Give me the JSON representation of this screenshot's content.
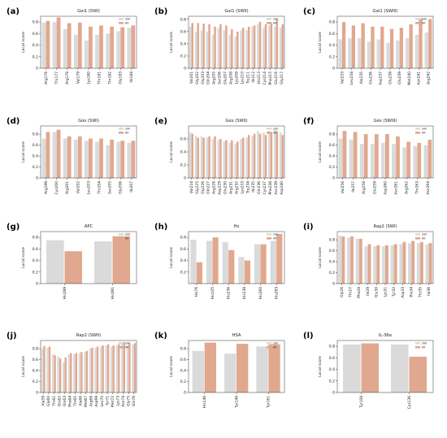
{
  "colors": {
    "s1": "#dadada",
    "s2": "#e0a88f",
    "axis": "#333333",
    "text": "#222222"
  },
  "chart_data": [
    {
      "label": "(a)",
      "type": "bar",
      "title": "Gαi1 (SWI)",
      "ylabel": "Local score",
      "ylim": [
        0,
        0.9
      ],
      "yticks": [
        0,
        0.2,
        0.4,
        0.6,
        0.8
      ],
      "legend": [
        "sim",
        "AF"
      ],
      "legend_position": "top-right",
      "categories": [
        "Arg176",
        "Thr177",
        "Arg178",
        "Val179",
        "Lys180",
        "Thr181",
        "Thr182",
        "Gly183",
        "Ile184"
      ],
      "series": [
        {
          "name": "sim",
          "values": [
            0.79,
            0.8,
            0.68,
            0.58,
            0.48,
            0.58,
            0.6,
            0.64,
            0.7
          ]
        },
        {
          "name": "AF",
          "values": [
            0.82,
            0.88,
            0.78,
            0.79,
            0.72,
            0.74,
            0.72,
            0.71,
            0.74
          ]
        }
      ]
    },
    {
      "label": "(b)",
      "type": "bar",
      "title": "Gαi1 (SWII)",
      "ylabel": "Local score",
      "ylim": [
        0,
        0.85
      ],
      "yticks": [
        0,
        0.2,
        0.4,
        0.6,
        0.8
      ],
      "legend": [
        "sim",
        "AF"
      ],
      "legend_position": "top-right",
      "categories": [
        "Val201",
        "Gly202",
        "Gly203",
        "Gln204",
        "Arg205",
        "Ser206",
        "Glu207",
        "Arg208",
        "Lys209",
        "Lys210",
        "Trp211",
        "Ile212",
        "His213",
        "Cys214",
        "Phe215",
        "Glu216",
        "Gly217"
      ],
      "series": [
        {
          "name": "sim",
          "values": [
            0.68,
            0.6,
            0.62,
            0.6,
            0.55,
            0.66,
            0.62,
            0.55,
            0.52,
            0.62,
            0.62,
            0.68,
            0.72,
            0.66,
            0.7,
            0.68,
            0.66
          ]
        },
        {
          "name": "AF",
          "values": [
            0.74,
            0.74,
            0.73,
            0.72,
            0.68,
            0.72,
            0.7,
            0.64,
            0.6,
            0.66,
            0.68,
            0.7,
            0.76,
            0.72,
            0.74,
            0.8,
            0.72
          ]
        }
      ]
    },
    {
      "label": "(c)",
      "type": "bar",
      "title": "Gαi1 (SWIII)",
      "ylabel": "Local score",
      "ylim": [
        0,
        0.9
      ],
      "yticks": [
        0,
        0.2,
        0.4,
        0.6,
        0.8
      ],
      "legend": [
        "sim",
        "AF"
      ],
      "legend_position": "top-right",
      "categories": [
        "Val233",
        "Leu234",
        "Ala235",
        "Glu236",
        "Asp237",
        "Glu238",
        "Glu239",
        "Met240",
        "Asn241",
        "Arg242"
      ],
      "series": [
        {
          "name": "sim",
          "values": [
            0.5,
            0.52,
            0.52,
            0.46,
            0.5,
            0.44,
            0.48,
            0.52,
            0.58,
            0.62
          ]
        },
        {
          "name": "AF",
          "values": [
            0.8,
            0.74,
            0.78,
            0.72,
            0.72,
            0.68,
            0.7,
            0.76,
            0.86,
            0.85
          ]
        }
      ]
    },
    {
      "label": "(d)",
      "type": "bar",
      "title": "Gαs (SWI)",
      "ylabel": "Local score",
      "ylim": [
        0,
        0.95
      ],
      "yticks": [
        0,
        0.2,
        0.4,
        0.6,
        0.8
      ],
      "legend": [
        "sim",
        "AF"
      ],
      "legend_position": "top-right",
      "categories": [
        "Arg199",
        "Cys200",
        "Arg201",
        "Val202",
        "Leu203",
        "Thr204",
        "Ser205",
        "Gly206",
        "Ile207"
      ],
      "series": [
        {
          "name": "sim",
          "values": [
            0.72,
            0.84,
            0.72,
            0.7,
            0.68,
            0.66,
            0.6,
            0.66,
            0.64
          ]
        },
        {
          "name": "AF",
          "values": [
            0.84,
            0.88,
            0.76,
            0.76,
            0.72,
            0.72,
            0.7,
            0.68,
            0.68
          ]
        }
      ]
    },
    {
      "label": "(e)",
      "type": "bar",
      "title": "Gαs (SWII)",
      "ylabel": "Local score",
      "ylim": [
        0,
        0.8
      ],
      "yticks": [
        0,
        0.2,
        0.4,
        0.6
      ],
      "legend": [
        "sim",
        "AF"
      ],
      "legend_position": "top-right",
      "categories": [
        "Val224",
        "Gly225",
        "Gly226",
        "Gln227",
        "Arg228",
        "Asp229",
        "Glu230",
        "Arg231",
        "Arg232",
        "Lys233",
        "Trp234",
        "Ile235",
        "Gln236",
        "Cys237",
        "Phe238",
        "Asn239",
        "Asp240"
      ],
      "series": [
        {
          "name": "sim",
          "values": [
            0.7,
            0.65,
            0.64,
            0.62,
            0.6,
            0.58,
            0.56,
            0.54,
            0.52,
            0.6,
            0.62,
            0.64,
            0.72,
            0.7,
            0.72,
            0.74,
            0.7
          ]
        },
        {
          "name": "AF",
          "values": [
            0.68,
            0.62,
            0.62,
            0.64,
            0.64,
            0.6,
            0.58,
            0.58,
            0.56,
            0.62,
            0.66,
            0.68,
            0.68,
            0.66,
            0.7,
            0.72,
            0.66
          ]
        }
      ]
    },
    {
      "label": "(f)",
      "type": "bar",
      "title": "Gαs (SWIII)",
      "ylabel": "Local score",
      "ylim": [
        0,
        0.95
      ],
      "yticks": [
        0,
        0.2,
        0.4,
        0.6,
        0.8
      ],
      "legend": [
        "sim",
        "AF"
      ],
      "legend_position": "top-right",
      "categories": [
        "Val256",
        "Ile257",
        "Arg258",
        "Glu259",
        "Asp260",
        "Asn261",
        "Arg262",
        "Thr263",
        "Asn264"
      ],
      "series": [
        {
          "name": "sim",
          "values": [
            0.72,
            0.7,
            0.62,
            0.62,
            0.64,
            0.62,
            0.56,
            0.58,
            0.6
          ]
        },
        {
          "name": "AF",
          "values": [
            0.86,
            0.84,
            0.8,
            0.8,
            0.8,
            0.76,
            0.66,
            0.64,
            0.7
          ]
        }
      ]
    },
    {
      "label": "(g)",
      "type": "bar",
      "title": "APC",
      "ylabel": "Local score",
      "ylim": [
        0,
        0.9
      ],
      "yticks": [
        0,
        0.2,
        0.4,
        0.6,
        0.8
      ],
      "legend": [
        "sim",
        "AF"
      ],
      "legend_position": "top-right",
      "categories": [
        "His289",
        "His391"
      ],
      "series": [
        {
          "name": "sim",
          "values": [
            0.75,
            0.73
          ]
        },
        {
          "name": "AF",
          "values": [
            0.56,
            0.82
          ]
        }
      ]
    },
    {
      "label": "(h)",
      "type": "bar",
      "title": "Hx",
      "ylabel": "Local score",
      "ylim": [
        0,
        0.9
      ],
      "yticks": [
        0.2,
        0.4,
        0.6,
        0.8
      ],
      "legend": [
        "sim",
        "AF"
      ],
      "legend_position": "top-right",
      "categories": [
        "His76",
        "His105",
        "His236",
        "His238",
        "His260",
        "His293"
      ],
      "series": [
        {
          "name": "sim",
          "values": [
            0.76,
            0.74,
            0.72,
            0.46,
            0.68,
            0.74
          ]
        },
        {
          "name": "AF",
          "values": [
            0.37,
            0.8,
            0.58,
            0.4,
            0.68,
            0.86
          ]
        }
      ]
    },
    {
      "label": "(i)",
      "type": "bar",
      "title": "Rap2 (SWI)",
      "ylabel": "Local score",
      "ylim": [
        0,
        0.95
      ],
      "yticks": [
        0,
        0.2,
        0.4,
        0.6,
        0.8
      ],
      "legend": [
        "sim",
        "AF"
      ],
      "legend_position": "top-right",
      "categories": [
        "Gly26",
        "Thr27",
        "Phe28",
        "Ile29",
        "Glu30",
        "Lys31",
        "Tyr32",
        "Asp33",
        "Pro34",
        "Thr35",
        "Ile36"
      ],
      "series": [
        {
          "name": "sim",
          "values": [
            0.88,
            0.84,
            0.82,
            0.68,
            0.68,
            0.68,
            0.7,
            0.72,
            0.74,
            0.74,
            0.72
          ]
        },
        {
          "name": "AF",
          "values": [
            0.86,
            0.86,
            0.82,
            0.72,
            0.7,
            0.7,
            0.72,
            0.76,
            0.78,
            0.76,
            0.74
          ]
        }
      ]
    },
    {
      "label": "(j)",
      "type": "bar",
      "title": "Rap2 (SWII)",
      "ylabel": "Local score",
      "ylim": [
        0,
        0.95
      ],
      "yticks": [
        0,
        0.2,
        0.4,
        0.6,
        0.8
      ],
      "legend": [
        "sim",
        "AF"
      ],
      "legend_position": "top-right",
      "categories": [
        "Ala59",
        "Gly60",
        "Thr61",
        "Glu62",
        "Gln63",
        "Phe64",
        "Thr65",
        "Ala66",
        "Met67",
        "Arg68",
        "Asp69",
        "Leu70",
        "Tyr71",
        "Met72",
        "Lys73",
        "Asn74",
        "Gly75",
        "Gln76"
      ],
      "series": [
        {
          "name": "sim",
          "values": [
            0.8,
            0.82,
            0.7,
            0.66,
            0.55,
            0.7,
            0.7,
            0.72,
            0.74,
            0.8,
            0.82,
            0.84,
            0.86,
            0.84,
            0.86,
            0.88,
            0.86,
            0.88
          ]
        },
        {
          "name": "AF",
          "values": [
            0.85,
            0.84,
            0.68,
            0.62,
            0.64,
            0.72,
            0.72,
            0.74,
            0.76,
            0.82,
            0.84,
            0.86,
            0.88,
            0.86,
            0.88,
            0.92,
            0.9,
            0.9
          ]
        }
      ]
    },
    {
      "label": "(k)",
      "type": "bar",
      "title": "HSA",
      "ylabel": "Local score",
      "ylim": [
        0,
        0.95
      ],
      "yticks": [
        0,
        0.2,
        0.4,
        0.6,
        0.8
      ],
      "legend": [
        "sim",
        "AF"
      ],
      "legend_position": "top-right",
      "categories": [
        "His146",
        "Tyr148",
        "Tyr161"
      ],
      "series": [
        {
          "name": "sim",
          "values": [
            0.76,
            0.71,
            0.84
          ]
        },
        {
          "name": "AF",
          "values": [
            0.91,
            0.89,
            0.88
          ]
        }
      ]
    },
    {
      "label": "(l)",
      "type": "bar",
      "title": "IL-36α",
      "ylabel": "Local score",
      "ylim": [
        0,
        0.9
      ],
      "yticks": [
        0,
        0.2,
        0.4,
        0.6,
        0.8
      ],
      "legend": [
        "sim",
        "AF"
      ],
      "legend_position": "top-right",
      "categories": [
        "Tyr108",
        "Cys136"
      ],
      "series": [
        {
          "name": "sim",
          "values": [
            0.83,
            0.83
          ]
        },
        {
          "name": "AF",
          "values": [
            0.85,
            0.62
          ]
        }
      ]
    }
  ]
}
